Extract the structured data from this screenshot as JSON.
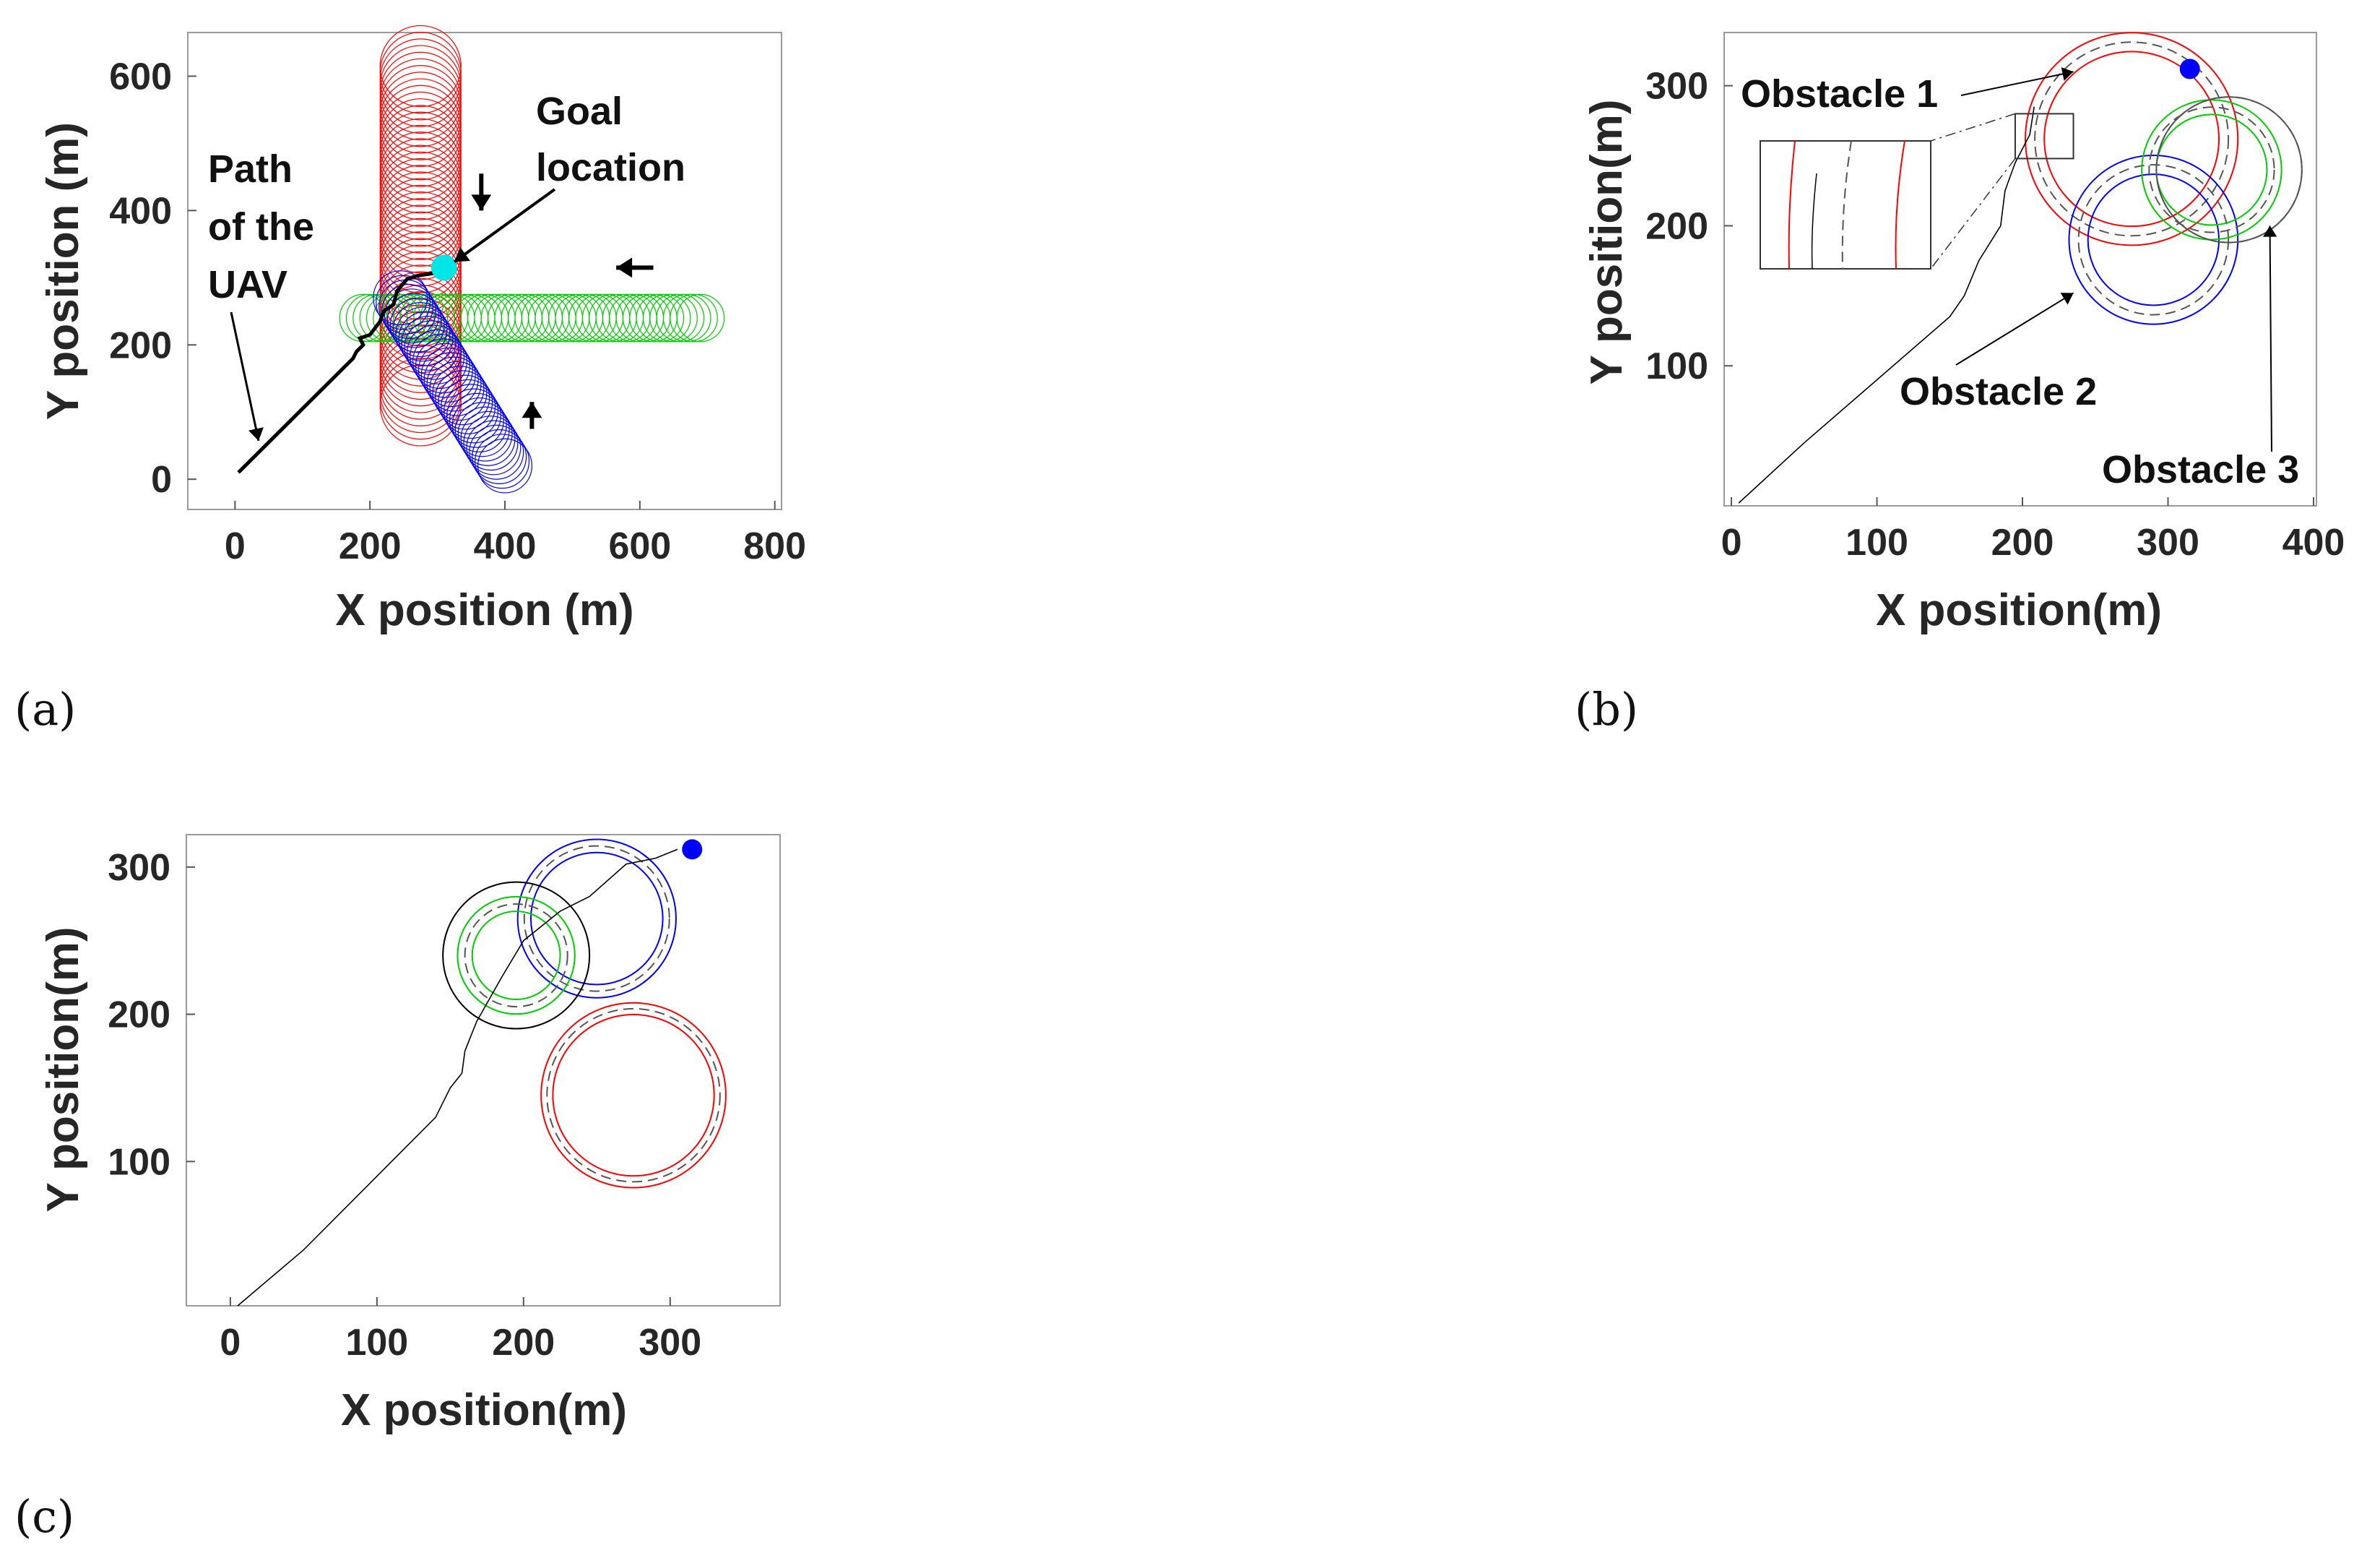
{
  "panel_labels": {
    "a": "(a)",
    "b": "(b)",
    "c": "(c)"
  },
  "colors": {
    "obstacle_1": "#ff0000",
    "obstacle_2": "#0000ff",
    "obstacle_3": "#00cc00",
    "path": "#000000",
    "goal_a": "#00e5e5",
    "goal_bc": "#0000ff",
    "inflated": "#555555",
    "arrows": "#000000"
  },
  "chart_data": [
    {
      "id": "a",
      "type": "line",
      "xlabel": "X position (m)",
      "ylabel": "Y position (m)",
      "xlim": [
        -70,
        810
      ],
      "ylim": [
        -45,
        665
      ],
      "xticks": [
        0,
        200,
        400,
        600,
        800
      ],
      "yticks": [
        0,
        200,
        400,
        600
      ],
      "annotations": {
        "path_label": [
          "Path",
          "of the",
          "UAV"
        ],
        "goal_label": [
          "Goal",
          "location"
        ]
      },
      "goal": [
        310,
        315
      ],
      "path": [
        [
          5,
          10
        ],
        [
          50,
          55
        ],
        [
          100,
          105
        ],
        [
          150,
          155
        ],
        [
          175,
          180
        ],
        [
          180,
          190
        ],
        [
          190,
          200
        ],
        [
          185,
          210
        ],
        [
          200,
          215
        ],
        [
          215,
          235
        ],
        [
          220,
          250
        ],
        [
          235,
          260
        ],
        [
          240,
          280
        ],
        [
          255,
          298
        ],
        [
          270,
          303
        ],
        [
          290,
          306
        ],
        [
          305,
          308
        ]
      ],
      "obstacle_sweeps": [
        {
          "name": "red",
          "radius": 60,
          "from": [
            275,
            615
          ],
          "to": [
            275,
            110
          ],
          "step": 10
        },
        {
          "name": "green",
          "radius": 35,
          "from": [
            690,
            240
          ],
          "to": [
            190,
            240
          ],
          "step": 10
        },
        {
          "name": "blue",
          "radius": 40,
          "from": [
            400,
            20
          ],
          "to": [
            245,
            270
          ],
          "step": 8
        }
      ],
      "motion_arrows": [
        {
          "from": [
            365,
            455
          ],
          "to": [
            365,
            400
          ]
        },
        {
          "from": [
            620,
            315
          ],
          "to": [
            565,
            315
          ]
        },
        {
          "from": [
            440,
            75
          ],
          "to": [
            440,
            115
          ]
        }
      ]
    },
    {
      "id": "b",
      "type": "line",
      "xlabel": "X position(m)",
      "ylabel": "Y position(m)",
      "xlim": [
        -5,
        402
      ],
      "ylim": [
        0,
        338
      ],
      "xticks": [
        0,
        100,
        200,
        300,
        400
      ],
      "yticks": [
        100,
        200,
        300
      ],
      "annotations": {
        "obstacle_1": "Obstacle 1",
        "obstacle_2": "Obstacle 2",
        "obstacle_3": "Obstacle 3"
      },
      "goal": [
        315,
        312
      ],
      "path": [
        [
          5,
          2
        ],
        [
          50,
          45
        ],
        [
          100,
          90
        ],
        [
          150,
          135
        ],
        [
          160,
          150
        ],
        [
          170,
          175
        ],
        [
          185,
          200
        ],
        [
          188,
          225
        ],
        [
          195,
          245
        ],
        [
          200,
          255
        ],
        [
          205,
          265
        ],
        [
          207,
          278
        ],
        [
          208,
          285
        ]
      ],
      "obstacles": [
        {
          "name": "Obstacle 1",
          "color": "red",
          "center": [
            275,
            262
          ],
          "radius": 60,
          "inflated_radius": 73
        },
        {
          "name": "Obstacle 2",
          "color": "blue",
          "center": [
            290,
            190
          ],
          "radius": 45,
          "inflated_radius": 58
        },
        {
          "name": "Obstacle 3",
          "color": "green",
          "center": [
            330,
            240
          ],
          "radius": 38,
          "inflated_radius": 48
        },
        {
          "name": "ghost",
          "color": "inflated",
          "center": [
            342,
            240
          ],
          "radius": 50,
          "inflated_radius": 50
        }
      ],
      "zoom_box": {
        "x": [
          195,
          235
        ],
        "y": [
          248,
          280
        ]
      }
    },
    {
      "id": "c",
      "type": "line",
      "xlabel": "X position(m)",
      "ylabel": "Y position(m)",
      "xlim": [
        -30,
        375
      ],
      "ylim": [
        2,
        322
      ],
      "xticks": [
        0,
        100,
        200,
        300
      ],
      "yticks": [
        100,
        200,
        300
      ],
      "goal": [
        315,
        312
      ],
      "path": [
        [
          5,
          2
        ],
        [
          50,
          40
        ],
        [
          100,
          90
        ],
        [
          140,
          130
        ],
        [
          150,
          150
        ],
        [
          158,
          160
        ],
        [
          160,
          175
        ],
        [
          168,
          195
        ],
        [
          185,
          225
        ],
        [
          200,
          250
        ],
        [
          225,
          270
        ],
        [
          245,
          280
        ],
        [
          270,
          302
        ],
        [
          290,
          306
        ],
        [
          305,
          312
        ]
      ],
      "obstacles": [
        {
          "name": "red",
          "color": "red",
          "center": [
            275,
            145
          ],
          "radius": 55,
          "inflated_radius": 63
        },
        {
          "name": "blue",
          "color": "blue",
          "center": [
            250,
            265
          ],
          "radius": 45,
          "inflated_radius": 54
        },
        {
          "name": "green",
          "color": "green",
          "center": [
            195,
            240
          ],
          "radius": 30,
          "inflated_radius": 40
        },
        {
          "name": "black",
          "color": "path",
          "center": [
            195,
            240
          ],
          "radius": 50,
          "inflated_radius": 50
        }
      ]
    }
  ]
}
